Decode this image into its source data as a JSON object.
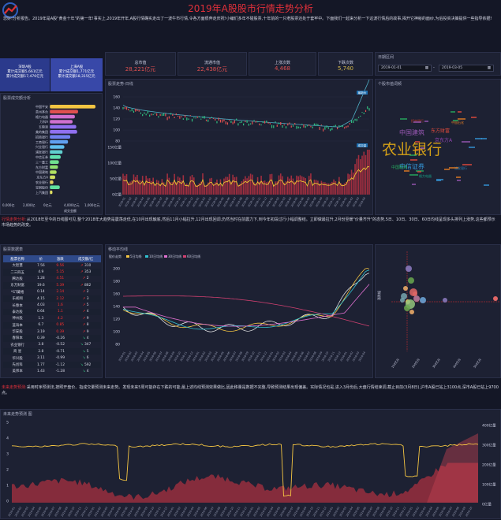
{
  "header": {
    "title": "2019年A股股市行情走势分析",
    "intro": "您好!分析报告。2019年是A股\"黄金十年\"的第一年!事实上,2019年开年,A股行情确实走出了一波牛市行情,令各方面很奔走庆祝!小编们多年不碰股票,十年前的一只老股票还处于套牢中。下面我们一起来分析一下这波行情后的故事,揭开它神秘的面纱,为后投资决策提供一些指导依据!"
  },
  "markets": {
    "sz": {
      "name": "深圳A股",
      "line1": "累计成交额5,661亿元",
      "line2": "累计成交额17,476亿元"
    },
    "sh": {
      "name": "上海A股",
      "line1": "累计成交额1,771亿元",
      "line2": "累计成交额18,315亿元"
    }
  },
  "stats": [
    {
      "label": "总市值",
      "value": "28,221亿元"
    },
    {
      "label": "流通市值",
      "value": "22,438亿元"
    },
    {
      "label": "上涨次数",
      "value": "4,468"
    },
    {
      "label": "下跌次数",
      "value": "5,740"
    }
  ],
  "date_range": {
    "label": "日期区间",
    "start": "2019-01-01",
    "end": "2019-03-05"
  },
  "top_chart": {
    "title": "股票走势-日线",
    "y_labels": [
      "160",
      "140",
      "120",
      "100",
      "80"
    ],
    "vol_labels": [
      "150亿量",
      "100亿量",
      "50亿量",
      "0亿量"
    ],
    "price_tag": "最新价",
    "vol_tag": "成交量"
  },
  "industry": {
    "title": "股票成交额分析",
    "bars": [
      {
        "label": "中国平安",
        "v": 1.0,
        "c": "#f4c542"
      },
      {
        "label": "贵州茅台",
        "v": 0.62,
        "c": "#e05050"
      },
      {
        "label": "格力电器",
        "v": 0.55,
        "c": "#d070d0"
      },
      {
        "label": "万科A",
        "v": 0.5,
        "c": "#d070d0"
      },
      {
        "label": "五粮液",
        "v": 0.58,
        "c": "#9070f0"
      },
      {
        "label": "美的集团",
        "v": 0.6,
        "c": "#9070f0"
      },
      {
        "label": "招商银行",
        "v": 0.45,
        "c": "#7080f0"
      },
      {
        "label": "工商银行",
        "v": 0.4,
        "c": "#60a0f0"
      },
      {
        "label": "兴业银行",
        "v": 0.32,
        "c": "#60c0f0"
      },
      {
        "label": "浦发银行",
        "v": 0.28,
        "c": "#60d0d0"
      },
      {
        "label": "中信证券",
        "v": 0.24,
        "c": "#60e0b0"
      },
      {
        "label": "三一重工",
        "v": 0.2,
        "c": "#70e090"
      },
      {
        "label": "东方财富",
        "v": 0.18,
        "c": "#90e070"
      },
      {
        "label": "中国建筑",
        "v": 0.15,
        "c": "#b0e060"
      },
      {
        "label": "京东方A",
        "v": 0.12,
        "c": "#d0e060"
      },
      {
        "label": "农业银行",
        "v": 0.08,
        "c": "#e0d060"
      },
      {
        "label": "宝钢股份",
        "v": 0.22,
        "c": "#60e0a0"
      },
      {
        "label": "上汽集团",
        "v": 0.06,
        "c": "#e0e060"
      }
    ],
    "axis": [
      "0,000亿",
      "2,000亿",
      "0亿元",
      "4,000亿元",
      "1,000亿元"
    ],
    "axis_caption": "成交金额"
  },
  "wordcloud": {
    "title": "个股市值词频",
    "words": [
      {
        "t": "农业银行",
        "c": "#d4a017",
        "s": 19
      },
      {
        "t": "中国建筑",
        "c": "#9b59b6",
        "s": 8
      },
      {
        "t": "中信证券",
        "c": "#3498db",
        "s": 8
      },
      {
        "t": "东方财富",
        "c": "#e74c3c",
        "s": 6
      },
      {
        "t": "京东方A",
        "c": "#8e44ad",
        "s": 6
      },
      {
        "t": "中国联通",
        "c": "#27ae60",
        "s": 5
      },
      {
        "t": "招商银行",
        "c": "#c0392b",
        "s": 4
      },
      {
        "t": "中国石化",
        "c": "#e67e22",
        "s": 4
      },
      {
        "t": "浦发银行",
        "c": "#2980b9",
        "s": 4
      },
      {
        "t": "格力电器",
        "c": "#16a085",
        "s": 4
      }
    ]
  },
  "summary1": {
    "tag": "行情走势分析:",
    "text": "从2018年至今的日线图可见,整个2018年大趋势是震荡走低,在10月出现触底,然后11月小幅拉升,12月出现回调,仍然当时在前震力下,到今年初段过行小幅调整结。立即做最拉升,2月份至暖\"价量齐升\"的态势,5日、10日、30日、60日均线呈现多头排列上涨势,这些都预示市场趋势的改变。"
  },
  "table": {
    "title": "股票数据表",
    "headers": [
      "股票名称",
      "价",
      "涨跌",
      "成交额/亿"
    ],
    "rows": [
      [
        "大智慧",
        "7.56",
        "9.56",
        "310"
      ],
      [
        "二三四五",
        "4.9",
        "5.15",
        "353"
      ],
      [
        "腾达股",
        "1.28",
        "4.51",
        "2"
      ],
      [
        "东方财富",
        "19.6",
        "5.39",
        "862"
      ],
      [
        "*ST藏格",
        "0.14",
        "2.14",
        "2"
      ],
      [
        "乐视网",
        "4.15",
        "2.12",
        "3"
      ],
      [
        "长春本",
        "4.03",
        "1.6",
        "5"
      ],
      [
        "泰达股",
        "0.64",
        "1.1",
        "4"
      ],
      [
        "神州股",
        "1.3",
        "4.2",
        "9"
      ],
      [
        "蓝海本",
        "6.7",
        "0.85",
        "8"
      ],
      [
        "华安股",
        "3.19",
        "0.39",
        "9"
      ],
      [
        "春阳本",
        "0.39",
        "-0.26",
        "4"
      ],
      [
        "农业银行",
        "3.8",
        "-0.52",
        "347"
      ],
      [
        "商 星",
        "2.8",
        "-0.71",
        "5"
      ],
      [
        "华兴股",
        "3.11",
        "-0.99",
        "6"
      ],
      [
        "先创科",
        "1.77",
        "-1.12",
        "592"
      ],
      [
        "美邦本",
        "1.43",
        "-1.28",
        "4"
      ]
    ]
  },
  "ma_chart": {
    "title": "移动平均线",
    "legend": [
      "股价走势",
      "5日均线",
      "10日均线",
      "30日均线",
      "60日均线"
    ],
    "y_labels": [
      "200",
      "180",
      "160",
      "140",
      "120",
      "100",
      "80"
    ]
  },
  "scatter": {
    "y_label": "涨跌幅",
    "ticks": [
      "100亿元",
      "200亿元",
      "300亿元",
      "400亿元",
      "500亿元"
    ]
  },
  "summary2": {
    "tag": "未来走势预测:",
    "text": "采用时序预测法,按照开盘价、指成交量预测未来走势。发现未来5周可能存在下跌的可能,最上述均线预测效果做比,因此移量是数据不完整,导致预测结果出现偏差。实际情况也是,进入3月份后,大盘行情结束调,截止目前(3月8日),沪市A股已站上3100点,深市A股已站上9700点。"
  },
  "forecast": {
    "title": "未来走势预测 图",
    "y_left": [
      "5",
      "4",
      "3",
      "2",
      "1",
      "0"
    ],
    "y_right": [
      "400亿量",
      "300亿量",
      "200亿量",
      "100亿量",
      "0亿量"
    ]
  },
  "colors": {
    "accent": "#e0303a",
    "panel": "#1d2133",
    "bg": "#141726",
    "gold": "#f4c542"
  }
}
